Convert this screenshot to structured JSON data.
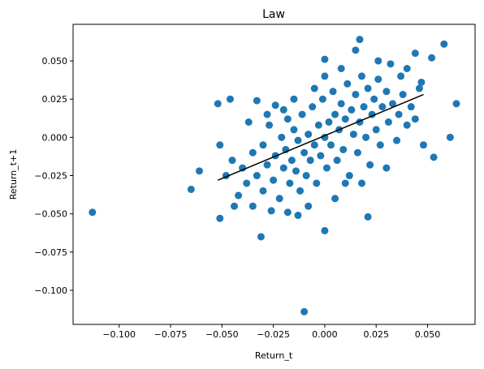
{
  "chart_data": {
    "type": "scatter",
    "title": "Law",
    "x_label": "Return_t",
    "y_label": "Return_t+1",
    "color": "#1f77b4",
    "xlim": [
      -0.1224,
      0.0731
    ],
    "ylim": [
      -0.1223,
      0.0739
    ],
    "xticks": [
      {
        "value": -0.1,
        "label": "−0.100"
      },
      {
        "value": -0.075,
        "label": "−0.075"
      },
      {
        "value": -0.05,
        "label": "−0.050"
      },
      {
        "value": -0.025,
        "label": "−0.025"
      },
      {
        "value": 0,
        "label": "0.000"
      },
      {
        "value": 0.025,
        "label": "0.025"
      },
      {
        "value": 0.05,
        "label": "0.050"
      }
    ],
    "yticks": [
      {
        "value": -0.1,
        "label": "−0.100"
      },
      {
        "value": -0.075,
        "label": "−0.075"
      },
      {
        "value": -0.05,
        "label": "−0.050"
      },
      {
        "value": -0.025,
        "label": "−0.025"
      },
      {
        "value": 0,
        "label": "0.000"
      },
      {
        "value": 0.025,
        "label": "0.025"
      },
      {
        "value": 0.05,
        "label": "0.050"
      }
    ],
    "x": [
      -0.113,
      -0.065,
      -0.061,
      -0.01,
      0.0,
      -0.031,
      0.064,
      0.058,
      0.017,
      0.061,
      0.053,
      0.021,
      -0.052,
      -0.046,
      -0.051,
      -0.051,
      0.0,
      0.052,
      0.044,
      -0.033,
      -0.024,
      -0.018,
      -0.013,
      -0.044,
      0.037,
      0.047,
      0.032,
      0.026,
      0.015,
      -0.04,
      -0.038,
      -0.035,
      -0.033,
      -0.03,
      -0.03,
      -0.028,
      -0.027,
      -0.025,
      -0.024,
      -0.022,
      -0.021,
      -0.02,
      -0.019,
      -0.018,
      -0.017,
      -0.016,
      -0.015,
      -0.014,
      -0.013,
      -0.012,
      -0.011,
      -0.01,
      -0.009,
      -0.008,
      -0.007,
      -0.006,
      -0.005,
      -0.004,
      -0.003,
      -0.002,
      -0.001,
      0.0,
      0.001,
      0.002,
      0.003,
      0.004,
      0.005,
      0.006,
      0.007,
      0.008,
      0.009,
      0.01,
      0.011,
      0.012,
      0.013,
      0.014,
      0.015,
      0.016,
      0.017,
      0.018,
      0.019,
      0.02,
      0.021,
      0.022,
      0.023,
      0.024,
      0.025,
      0.026,
      0.027,
      0.028,
      0.03,
      0.031,
      0.033,
      0.035,
      0.036,
      0.038,
      0.04,
      0.042,
      0.044,
      0.046,
      0.048,
      -0.045,
      -0.042,
      -0.048,
      -0.037,
      -0.026,
      -0.02,
      -0.008,
      0.005,
      0.01,
      -0.015,
      0.0,
      0.008,
      -0.035,
      0.03,
      0.04,
      -0.005,
      0.018,
      -0.028
    ],
    "y": [
      -0.049,
      -0.034,
      -0.022,
      -0.114,
      -0.061,
      -0.065,
      0.022,
      0.061,
      0.064,
      0.0,
      -0.013,
      -0.052,
      0.022,
      0.025,
      -0.053,
      -0.005,
      0.051,
      0.052,
      0.055,
      0.024,
      0.021,
      -0.049,
      -0.051,
      -0.045,
      0.04,
      0.036,
      0.048,
      0.05,
      0.057,
      -0.02,
      -0.03,
      -0.01,
      -0.025,
      -0.005,
      -0.035,
      -0.018,
      0.008,
      -0.028,
      -0.012,
      -0.04,
      0.0,
      -0.02,
      -0.008,
      0.012,
      -0.03,
      -0.015,
      0.005,
      -0.022,
      -0.002,
      -0.035,
      0.015,
      -0.01,
      -0.025,
      0.002,
      -0.015,
      0.02,
      -0.005,
      -0.03,
      0.008,
      -0.012,
      0.025,
      0.0,
      -0.02,
      0.01,
      -0.005,
      0.03,
      0.015,
      -0.015,
      0.005,
      0.022,
      -0.008,
      0.012,
      0.035,
      -0.025,
      0.018,
      0.002,
      0.028,
      -0.01,
      0.01,
      0.04,
      0.02,
      0.0,
      0.032,
      -0.018,
      0.015,
      0.025,
      0.005,
      0.038,
      -0.005,
      0.02,
      0.03,
      0.01,
      0.022,
      -0.002,
      0.015,
      0.028,
      0.008,
      0.02,
      0.012,
      0.032,
      -0.005,
      -0.015,
      -0.038,
      -0.025,
      0.01,
      -0.048,
      0.018,
      -0.045,
      -0.04,
      -0.03,
      0.025,
      0.04,
      0.045,
      -0.045,
      -0.02,
      0.045,
      0.032,
      -0.03,
      0.015
    ],
    "fit": {
      "x": [
        -0.052,
        0.048
      ],
      "y": [
        -0.028,
        0.028
      ],
      "color": "#000000"
    }
  }
}
